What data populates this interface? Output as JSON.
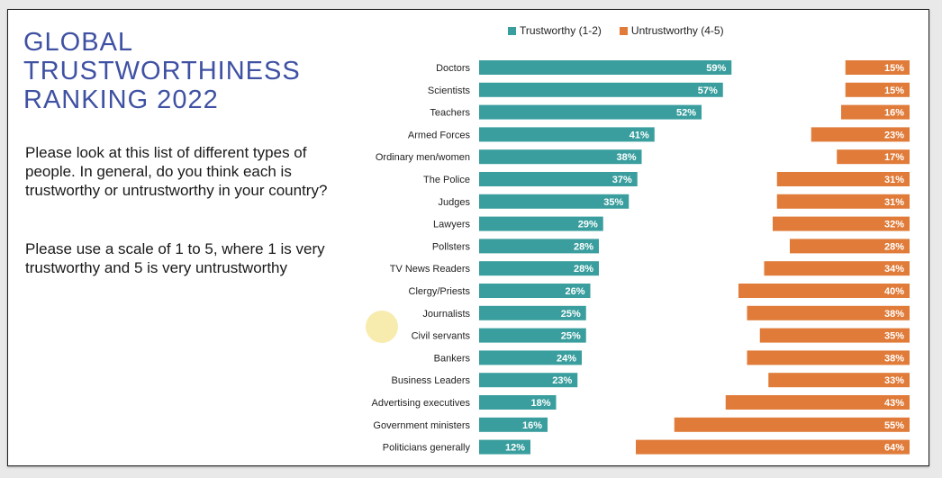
{
  "title_lines": [
    "GLOBAL",
    "TRUSTWORTHINESS",
    "RANKING 2022"
  ],
  "question": "Please look at this list of different types of people. In general, do you think each is trustworthy or untrustworthy in your country?",
  "scale_note": "Please use a scale of 1 to 5, where 1 is very trustworthy and 5 is very untrustworthy",
  "colors": {
    "title": "#3f51a3",
    "trustworthy": "#3a9e9e",
    "untrustworthy": "#e07b39"
  },
  "chart_data": {
    "type": "bar",
    "orientation": "horizontal",
    "categories": [
      "Doctors",
      "Scientists",
      "Teachers",
      "Armed Forces",
      "Ordinary men/women",
      "The Police",
      "Judges",
      "Lawyers",
      "Pollsters",
      "TV News Readers",
      "Clergy/Priests",
      "Journalists",
      "Civil servants",
      "Bankers",
      "Business Leaders",
      "Advertising executives",
      "Government ministers",
      "Politicians generally"
    ],
    "series": [
      {
        "name": "Trustworthy (1-2)",
        "values": [
          59,
          57,
          52,
          41,
          38,
          37,
          35,
          29,
          28,
          28,
          26,
          25,
          25,
          24,
          23,
          18,
          16,
          12
        ],
        "labels": [
          "59%",
          "57%",
          "52%",
          "41%",
          "38%",
          "37%",
          "35%",
          "29%",
          "28%",
          "28%",
          "26%",
          "25%",
          "25%",
          "24%",
          "23%",
          "18%",
          "16%",
          "12%"
        ]
      },
      {
        "name": "Untrustworthy (4-5)",
        "values": [
          15,
          15,
          16,
          23,
          17,
          31,
          31,
          32,
          28,
          34,
          40,
          38,
          35,
          38,
          33,
          43,
          55,
          64
        ],
        "labels": [
          "15%",
          "15%",
          "16%",
          "23%",
          "17%",
          "31%",
          "31%",
          "32%",
          "28%",
          "34%",
          "40%",
          "38%",
          "35%",
          "38%",
          "33%",
          "43%",
          "55%",
          "64%"
        ]
      }
    ],
    "legend_position": "top"
  }
}
